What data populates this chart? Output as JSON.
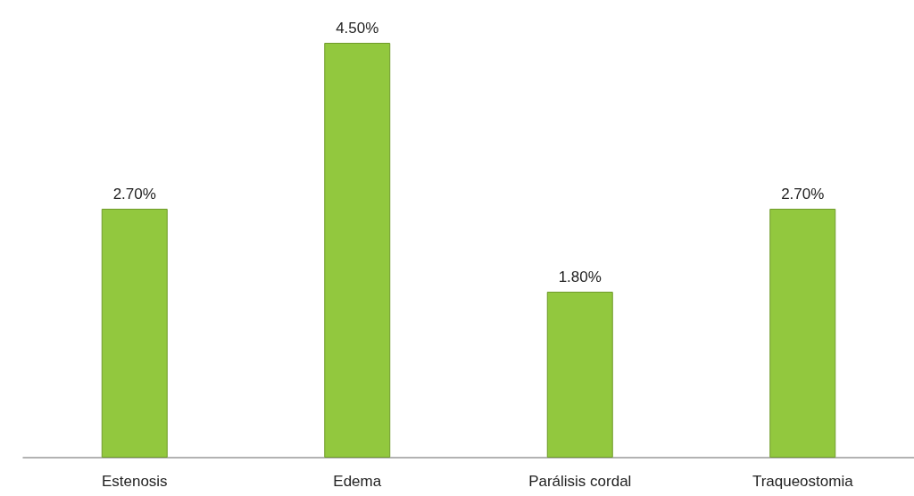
{
  "chart_data": {
    "type": "bar",
    "categories": [
      "Estenosis",
      "Edema",
      "Parálisis cordal",
      "Traqueostomia"
    ],
    "values": [
      2.7,
      4.5,
      1.8,
      2.7
    ],
    "color": "#92c83e",
    "value_labels": [
      "2.70%",
      "4.50%",
      "1.80%",
      "2.70%"
    ]
  }
}
